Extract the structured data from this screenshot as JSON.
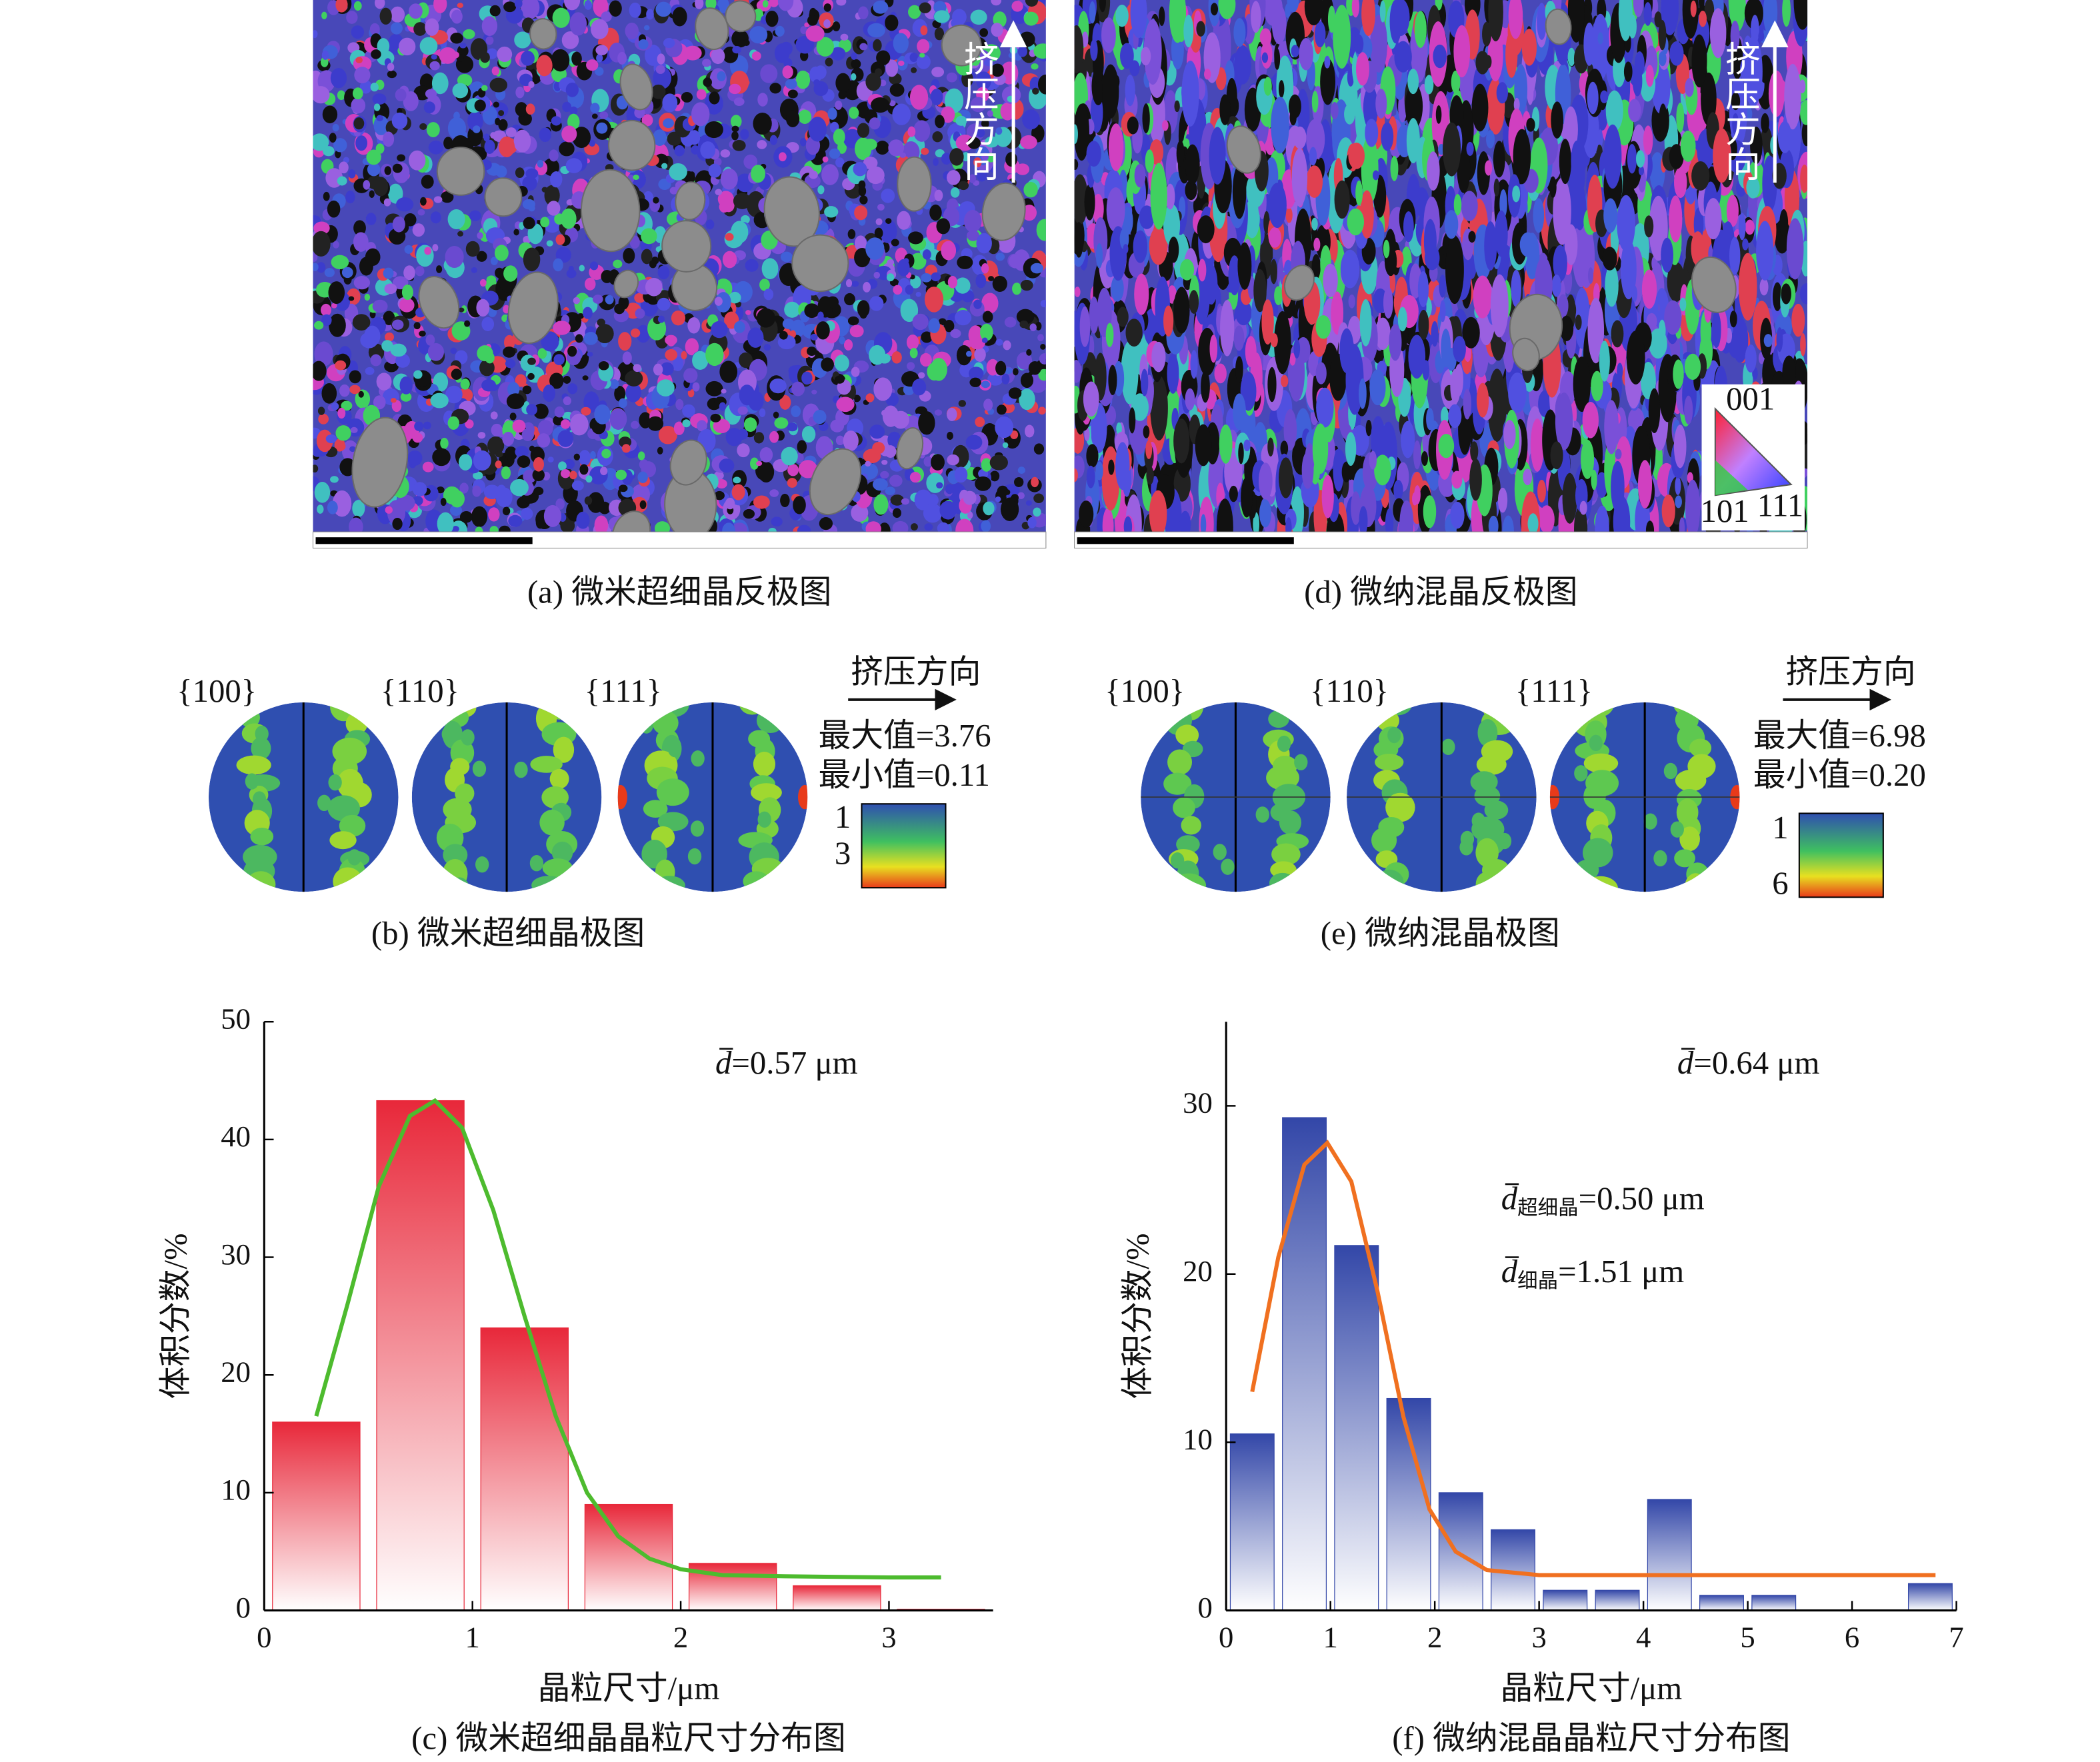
{
  "figure": {
    "panels": {
      "a": {
        "caption": "(a) 微米超细晶反极图",
        "direction": "挤压方向"
      },
      "d": {
        "caption": "(d) 微纳混晶反极图",
        "direction": "挤压方向",
        "ipf_labels": [
          "001",
          "101",
          "111"
        ]
      },
      "b": {
        "caption": "(b) 微米超细晶极图",
        "planes": [
          "{100}",
          "{110}",
          "{111}"
        ],
        "direction": "挤压方向",
        "max": "最大值=3.76",
        "min": "最小值=0.11",
        "colorbar_labels": [
          "1",
          "3"
        ]
      },
      "e": {
        "caption": "(e) 微纳混晶极图",
        "planes": [
          "{100}",
          "{110}",
          "{111}"
        ],
        "direction": "挤压方向",
        "max": "最大值=6.98",
        "min": "最小值=0.20",
        "colorbar_labels": [
          "1",
          "6"
        ]
      }
    }
  },
  "chart_data": [
    {
      "type": "histogram",
      "caption": "(c) 微米超细晶晶粒尺寸分布图",
      "xlabel": "晶粒尺寸/μm",
      "ylabel": "体积分数/%",
      "bins": [
        0,
        0.5,
        1,
        1.5,
        2,
        2.5,
        3,
        3.5
      ],
      "values": [
        16,
        43.3,
        24,
        9,
        4,
        2.1,
        0.1
      ],
      "color": "#e8283a",
      "fit": {
        "color": "#4dbb2e",
        "x": [
          0.25,
          0.4,
          0.55,
          0.7,
          0.82,
          0.95,
          1.1,
          1.25,
          1.4,
          1.55,
          1.7,
          1.85,
          2.0,
          2.2,
          2.5,
          3.0,
          3.25
        ],
        "values": [
          16.5,
          26,
          36,
          42,
          43.3,
          41,
          34,
          25,
          16.5,
          10,
          6.3,
          4.4,
          3.5,
          3.0,
          2.9,
          2.8,
          2.8
        ]
      },
      "xlim": [
        0,
        3.5
      ],
      "xticks": [
        0,
        1,
        2,
        3
      ],
      "ylim": [
        0,
        50
      ],
      "yticks": [
        0,
        10,
        20,
        30,
        40,
        50
      ],
      "annotations": [
        {
          "symbol": "d",
          "text": "=0.57 μm"
        }
      ]
    },
    {
      "type": "histogram",
      "caption": "(f) 微纳混晶晶粒尺寸分布图",
      "xlabel": "晶粒尺寸/μm",
      "ylabel": "体积分数/%",
      "bins": [
        0,
        0.5,
        1,
        1.5,
        2,
        2.5,
        3,
        3.5,
        4,
        4.5,
        5,
        5.5,
        6,
        6.5,
        7
      ],
      "values": [
        10.5,
        29.3,
        21.7,
        12.6,
        7.0,
        4.8,
        1.2,
        1.2,
        6.6,
        0.9,
        0.9,
        0,
        0,
        1.6
      ],
      "color": "#3347a8",
      "fit": {
        "color": "#f07020",
        "x": [
          0.25,
          0.5,
          0.75,
          0.97,
          1.2,
          1.45,
          1.7,
          1.95,
          2.2,
          2.5,
          3.0,
          4.0,
          5.0,
          6.0,
          6.8
        ],
        "values": [
          13,
          21,
          26.5,
          27.8,
          25.5,
          19,
          11.5,
          6,
          3.5,
          2.4,
          2.1,
          2.1,
          2.1,
          2.1,
          2.1
        ]
      },
      "xlim": [
        0,
        7
      ],
      "xticks": [
        0,
        1,
        2,
        3,
        4,
        5,
        6,
        7
      ],
      "ylim": [
        0,
        35
      ],
      "yticks": [
        0,
        10,
        20,
        30
      ],
      "annotations": [
        {
          "symbol": "d",
          "text": "=0.64 μm"
        },
        {
          "symbol": "d",
          "subscript": "超细晶",
          "text": "=0.50 μm"
        },
        {
          "symbol": "d",
          "subscript": "细晶",
          "text": "=1.51 μm"
        }
      ]
    }
  ]
}
